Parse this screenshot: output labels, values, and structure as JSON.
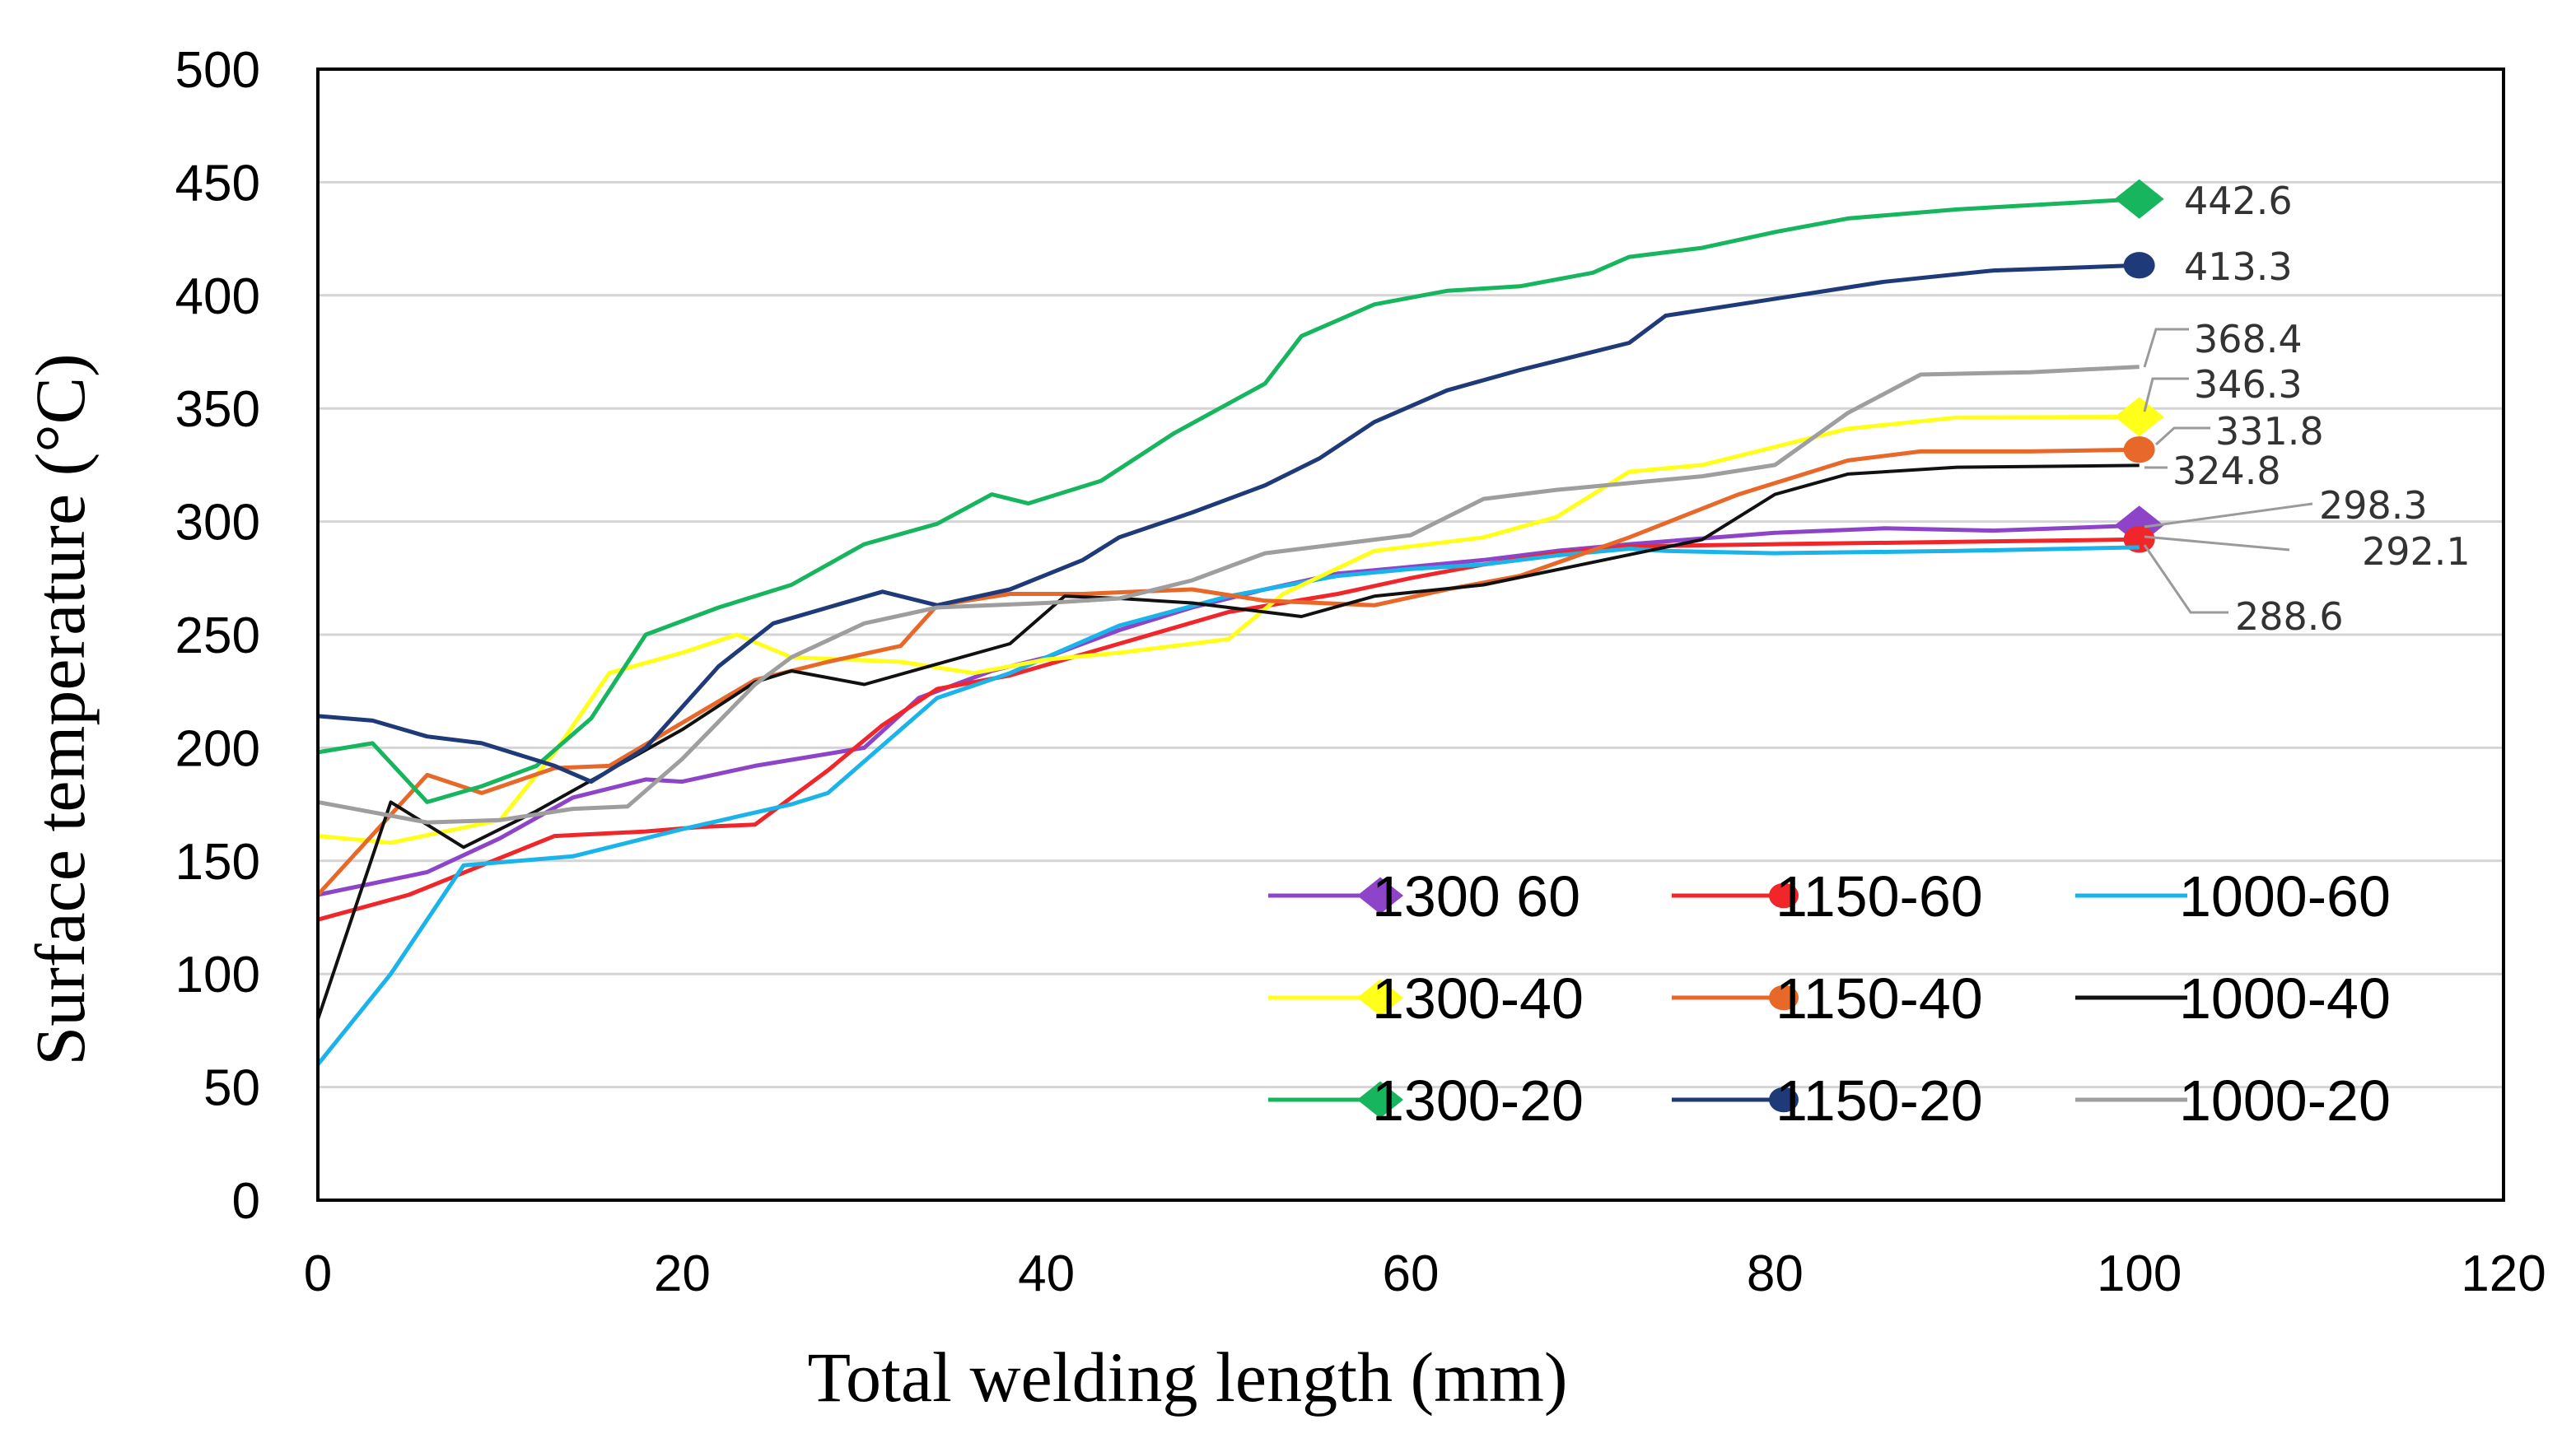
{
  "chart_data": {
    "type": "line",
    "title": "",
    "xlabel": "Total welding length (mm)",
    "ylabel": "Surface temperature (°C)",
    "xlim": [
      0,
      120
    ],
    "ylim": [
      0,
      500
    ],
    "xticks": [
      0,
      20,
      40,
      60,
      80,
      100,
      120
    ],
    "yticks": [
      0,
      50,
      100,
      150,
      200,
      250,
      300,
      350,
      400,
      450,
      500
    ],
    "grid": "horizontal",
    "legend_position": "bottom-right",
    "series": [
      {
        "name": "1300 60",
        "color": "#8e44c9",
        "marker": "diamond",
        "end_label": "298.3",
        "points": [
          [
            0,
            135
          ],
          [
            6,
            145
          ],
          [
            10,
            160
          ],
          [
            14,
            178
          ],
          [
            18,
            186
          ],
          [
            20,
            185
          ],
          [
            24,
            192
          ],
          [
            30,
            200
          ],
          [
            33,
            222
          ],
          [
            37,
            234
          ],
          [
            40,
            240
          ],
          [
            44,
            252
          ],
          [
            48,
            262
          ],
          [
            52,
            270
          ],
          [
            56,
            277
          ],
          [
            60,
            280
          ],
          [
            64,
            283
          ],
          [
            68,
            287
          ],
          [
            72,
            290
          ],
          [
            80,
            295
          ],
          [
            86,
            297
          ],
          [
            92,
            296
          ],
          [
            100,
            298.3
          ]
        ]
      },
      {
        "name": "1150-60",
        "color": "#f0262a",
        "marker": "circle",
        "end_label": "292.1",
        "points": [
          [
            0,
            124
          ],
          [
            5,
            135
          ],
          [
            9,
            148
          ],
          [
            13,
            161
          ],
          [
            18,
            163
          ],
          [
            21,
            165
          ],
          [
            24,
            166
          ],
          [
            28,
            190
          ],
          [
            31,
            210
          ],
          [
            34,
            226
          ],
          [
            38,
            232
          ],
          [
            44,
            246
          ],
          [
            50,
            260
          ],
          [
            56,
            268
          ],
          [
            60,
            275
          ],
          [
            64,
            281
          ],
          [
            68,
            286
          ],
          [
            72,
            289
          ],
          [
            80,
            290
          ],
          [
            90,
            291
          ],
          [
            100,
            292.1
          ]
        ]
      },
      {
        "name": "1000-60",
        "color": "#1ab3ea",
        "marker": "none",
        "end_label": "288.6",
        "points": [
          [
            0,
            60
          ],
          [
            4,
            100
          ],
          [
            8,
            148
          ],
          [
            14,
            152
          ],
          [
            20,
            164
          ],
          [
            26,
            175
          ],
          [
            28,
            180
          ],
          [
            32,
            208
          ],
          [
            34,
            222
          ],
          [
            38,
            233
          ],
          [
            44,
            254
          ],
          [
            50,
            267
          ],
          [
            56,
            276
          ],
          [
            60,
            279
          ],
          [
            64,
            281
          ],
          [
            68,
            285
          ],
          [
            72,
            288
          ],
          [
            74,
            287
          ],
          [
            80,
            286
          ],
          [
            90,
            287
          ],
          [
            100,
            288.6
          ]
        ]
      },
      {
        "name": "1300-40",
        "color": "#ffff1a",
        "marker": "diamond",
        "end_label": "346.3",
        "points": [
          [
            0,
            161
          ],
          [
            4,
            158
          ],
          [
            10,
            168
          ],
          [
            13,
            198
          ],
          [
            16,
            233
          ],
          [
            20,
            242
          ],
          [
            23,
            250
          ],
          [
            26,
            240
          ],
          [
            32,
            238
          ],
          [
            36,
            233
          ],
          [
            40,
            239
          ],
          [
            44,
            242
          ],
          [
            50,
            248
          ],
          [
            53,
            268
          ],
          [
            58,
            287
          ],
          [
            64,
            293
          ],
          [
            68,
            302
          ],
          [
            72,
            322
          ],
          [
            76,
            325
          ],
          [
            80,
            333
          ],
          [
            84,
            341
          ],
          [
            90,
            346
          ],
          [
            100,
            346.3
          ]
        ]
      },
      {
        "name": "1150-40",
        "color": "#e8682a",
        "marker": "circle",
        "end_label": "331.8",
        "points": [
          [
            0,
            135
          ],
          [
            6,
            188
          ],
          [
            9,
            180
          ],
          [
            13,
            191
          ],
          [
            16,
            192
          ],
          [
            20,
            211
          ],
          [
            24,
            230
          ],
          [
            28,
            238
          ],
          [
            32,
            245
          ],
          [
            34,
            263
          ],
          [
            38,
            268
          ],
          [
            42,
            268
          ],
          [
            48,
            270
          ],
          [
            52,
            265
          ],
          [
            58,
            263
          ],
          [
            62,
            270
          ],
          [
            66,
            276
          ],
          [
            72,
            293
          ],
          [
            78,
            312
          ],
          [
            84,
            327
          ],
          [
            88,
            331
          ],
          [
            94,
            331
          ],
          [
            100,
            331.8
          ]
        ]
      },
      {
        "name": "1000-40",
        "color": "#111111",
        "marker": "none",
        "end_label": "324.8",
        "points": [
          [
            0,
            80
          ],
          [
            4,
            176
          ],
          [
            8,
            156
          ],
          [
            12,
            172
          ],
          [
            16,
            190
          ],
          [
            20,
            208
          ],
          [
            24,
            229
          ],
          [
            26,
            234
          ],
          [
            30,
            228
          ],
          [
            34,
            237
          ],
          [
            38,
            246
          ],
          [
            41,
            267
          ],
          [
            44,
            266
          ],
          [
            48,
            264
          ],
          [
            54,
            258
          ],
          [
            58,
            267
          ],
          [
            64,
            272
          ],
          [
            70,
            282
          ],
          [
            76,
            292
          ],
          [
            80,
            312
          ],
          [
            84,
            321
          ],
          [
            90,
            324
          ],
          [
            100,
            324.8
          ]
        ]
      },
      {
        "name": "1300-20",
        "color": "#17b55e",
        "marker": "diamond",
        "end_label": "442.6",
        "points": [
          [
            0,
            198
          ],
          [
            3,
            202
          ],
          [
            6,
            176
          ],
          [
            9,
            183
          ],
          [
            12,
            192
          ],
          [
            15,
            213
          ],
          [
            18,
            250
          ],
          [
            22,
            262
          ],
          [
            26,
            272
          ],
          [
            30,
            290
          ],
          [
            34,
            299
          ],
          [
            37,
            312
          ],
          [
            39,
            308
          ],
          [
            43,
            318
          ],
          [
            47,
            339
          ],
          [
            52,
            361
          ],
          [
            54,
            382
          ],
          [
            58,
            396
          ],
          [
            62,
            402
          ],
          [
            66,
            404
          ],
          [
            70,
            410
          ],
          [
            72,
            417
          ],
          [
            76,
            421
          ],
          [
            80,
            428
          ],
          [
            84,
            434
          ],
          [
            90,
            438
          ],
          [
            100,
            442.6
          ]
        ]
      },
      {
        "name": "1150-20",
        "color": "#1f3a78",
        "marker": "circle",
        "end_label": "413.3",
        "points": [
          [
            0,
            214
          ],
          [
            3,
            212
          ],
          [
            6,
            205
          ],
          [
            9,
            202
          ],
          [
            13,
            192
          ],
          [
            15,
            185
          ],
          [
            18,
            200
          ],
          [
            22,
            236
          ],
          [
            25,
            255
          ],
          [
            28,
            262
          ],
          [
            31,
            269
          ],
          [
            34,
            263
          ],
          [
            38,
            270
          ],
          [
            42,
            283
          ],
          [
            44,
            293
          ],
          [
            48,
            304
          ],
          [
            52,
            316
          ],
          [
            55,
            328
          ],
          [
            58,
            344
          ],
          [
            62,
            358
          ],
          [
            66,
            367
          ],
          [
            72,
            379
          ],
          [
            74,
            391
          ],
          [
            78,
            396
          ],
          [
            82,
            401
          ],
          [
            86,
            406
          ],
          [
            92,
            411
          ],
          [
            100,
            413.3
          ]
        ]
      },
      {
        "name": "1000-20",
        "color": "#9e9e9e",
        "marker": "none",
        "end_label": "368.4",
        "points": [
          [
            0,
            176
          ],
          [
            6,
            167
          ],
          [
            10,
            168
          ],
          [
            14,
            173
          ],
          [
            17,
            174
          ],
          [
            20,
            195
          ],
          [
            24,
            228
          ],
          [
            26,
            240
          ],
          [
            30,
            255
          ],
          [
            34,
            262
          ],
          [
            40,
            264
          ],
          [
            44,
            266
          ],
          [
            48,
            274
          ],
          [
            52,
            286
          ],
          [
            56,
            290
          ],
          [
            60,
            294
          ],
          [
            64,
            310
          ],
          [
            68,
            314
          ],
          [
            72,
            317
          ],
          [
            76,
            320
          ],
          [
            80,
            325
          ],
          [
            84,
            348
          ],
          [
            88,
            365
          ],
          [
            94,
            366
          ],
          [
            100,
            368.4
          ]
        ]
      }
    ]
  }
}
